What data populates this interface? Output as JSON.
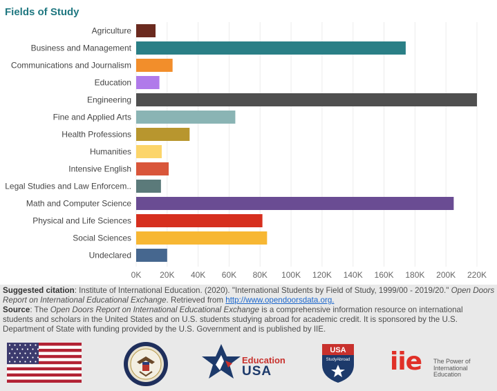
{
  "chart_data": {
    "type": "bar",
    "orientation": "horizontal",
    "title": "Fields of Study",
    "xlabel": "",
    "ylabel": "",
    "xlim": [
      0,
      220000
    ],
    "ticks": [
      0,
      20000,
      40000,
      60000,
      80000,
      100000,
      120000,
      140000,
      160000,
      180000,
      200000,
      220000
    ],
    "tick_labels": [
      "0K",
      "20K",
      "40K",
      "60K",
      "80K",
      "100K",
      "120K",
      "140K",
      "160K",
      "180K",
      "200K",
      "220K"
    ],
    "grid": true,
    "categories": [
      "Agriculture",
      "Business and Management",
      "Communications and Journalism",
      "Education",
      "Engineering",
      "Fine and Applied Arts",
      "Health Professions",
      "Humanities",
      "Intensive English",
      "Legal Studies and Law Enforcem..",
      "Math and Computer Science",
      "Physical and Life Sciences",
      "Social Sciences",
      "Undeclared"
    ],
    "values": [
      12500,
      174000,
      23500,
      15000,
      220000,
      64000,
      34500,
      16500,
      21000,
      16000,
      205000,
      81500,
      84500,
      20000
    ],
    "colors": [
      "#6b2a1f",
      "#2a7f86",
      "#f28e2b",
      "#b07aea",
      "#4f4f4f",
      "#8ab4b4",
      "#b8962e",
      "#fcd56a",
      "#d9563a",
      "#5b7a7a",
      "#6a4c93",
      "#d62f1e",
      "#f7b733",
      "#46678f"
    ]
  },
  "footer": {
    "citation_label": "Suggested citation",
    "citation_text_1": ": Institute of International Education. (2020). \"International Students by Field of Study, 1999/00 - 2019/20.\" ",
    "citation_italic": "Open Doors Report on International Educational Exchange",
    "citation_text_2": ". Retrieved from ",
    "citation_link": "http://www.opendoorsdata.org.",
    "source_label": "Source",
    "source_text_1": ": The ",
    "source_italic": "Open Doors Report on International Educational Exchange",
    "source_text_2": " is a comprehensive information resource on international students and scholars in the United States and on U.S. students studying abroad for academic credit. It is sponsored by the U.S. Department of State with funding provided by the U.S. Government and is published by IIE."
  },
  "logos": {
    "education_word": "Education",
    "usa_word": "USA",
    "badge_usa": "USA",
    "badge_study": "StudyAbroad",
    "iie_word": "iie",
    "iie_tagline": "The Power of International Education"
  }
}
